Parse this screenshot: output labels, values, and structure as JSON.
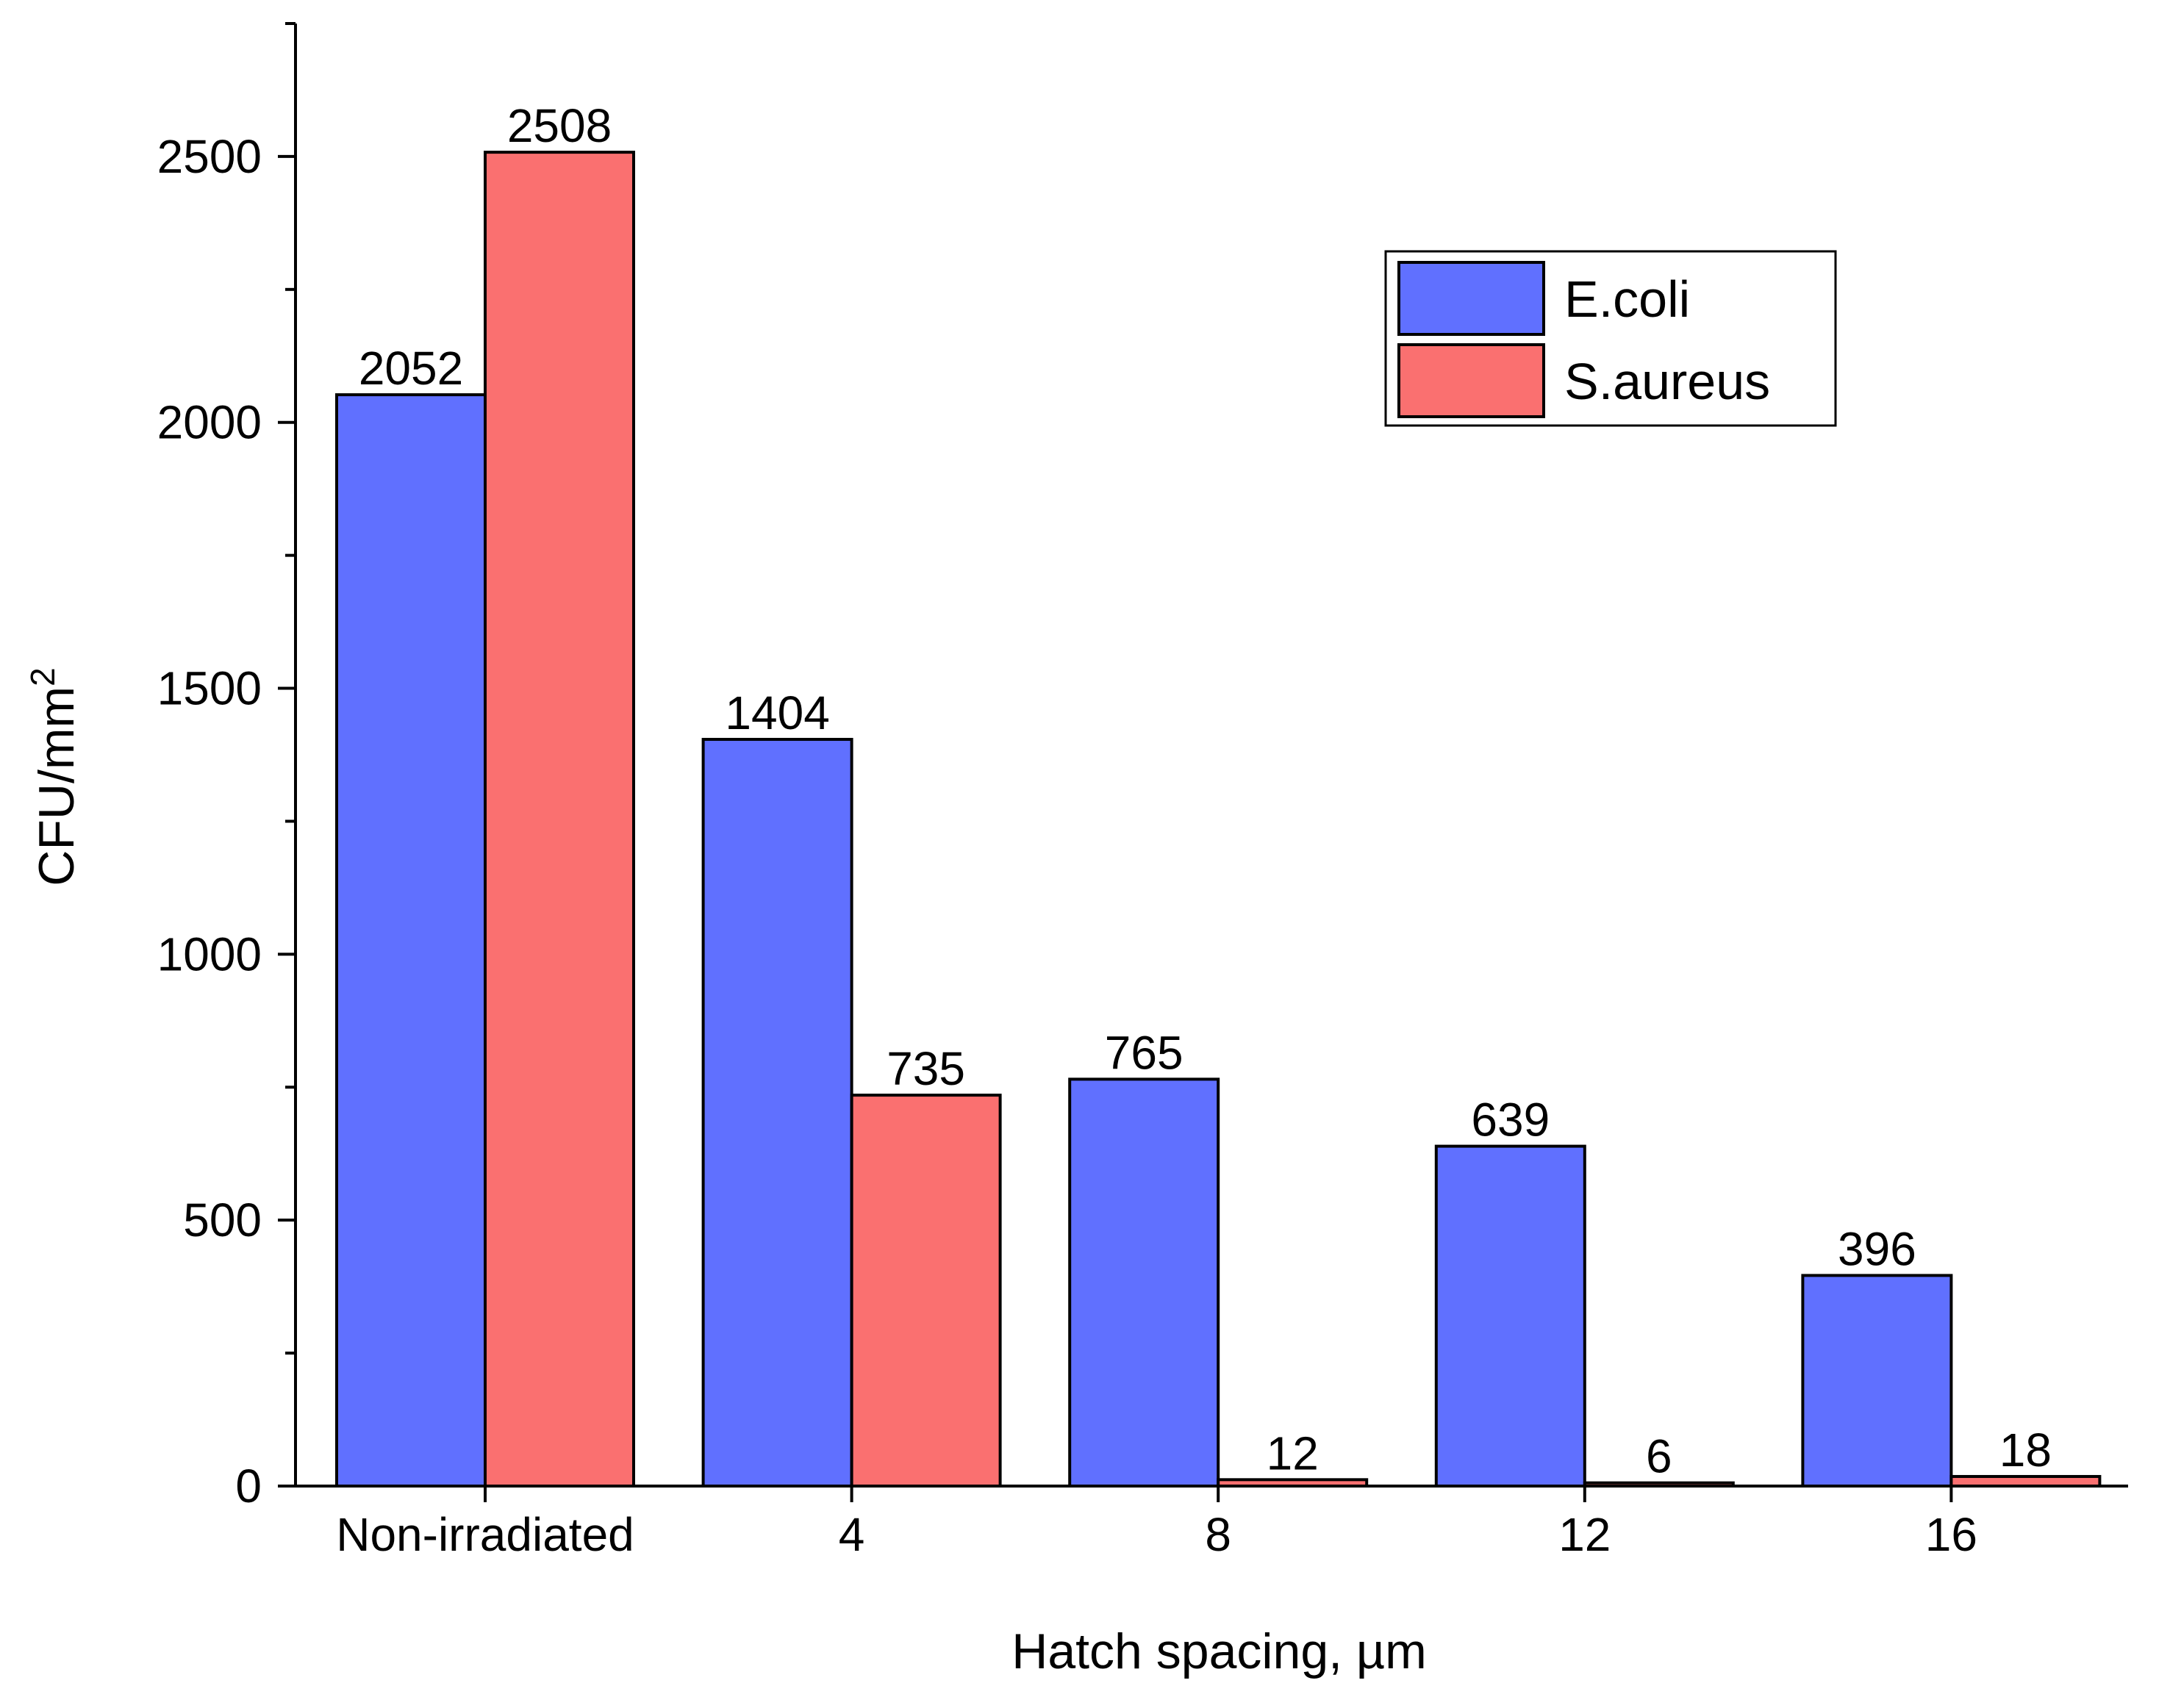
{
  "chart_data": {
    "type": "bar",
    "title": "",
    "xlabel": "Hatch spacing, µm",
    "ylabel": "CFU/mm",
    "ylabel_superscript": "2",
    "ylim": [
      0,
      2750
    ],
    "yticks": [
      0,
      500,
      1000,
      1500,
      2000,
      2500
    ],
    "minor_tick_step": 250,
    "categories": [
      "Non-irradiated",
      "4",
      "8",
      "12",
      "16"
    ],
    "series": [
      {
        "name": "E.coli",
        "color": "#6070FF",
        "values": [
          2052,
          1404,
          765,
          639,
          396
        ]
      },
      {
        "name": "S.aureus",
        "color": "#FA7070",
        "values": [
          2508,
          735,
          12,
          6,
          18
        ]
      }
    ],
    "data_labels": true,
    "legend_position": "top-right",
    "grid": false
  }
}
